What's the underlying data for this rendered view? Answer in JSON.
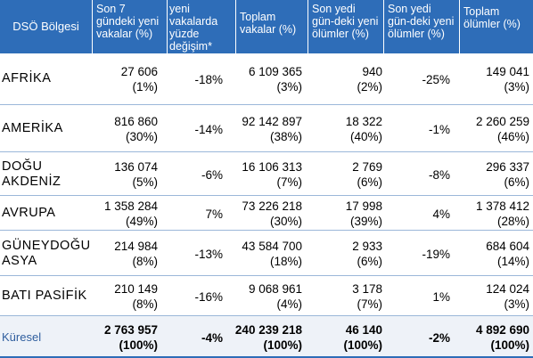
{
  "headers": [
    "DSÖ Bölgesi",
    "Son 7 gündeki yeni vakalar (%)",
    "yeni vakalarda yüzde değişim*",
    "Toplam vakalar (%)",
    "Son yedi gün-deki yeni ölümler (%)",
    "Son yedi gün-deki yeni ölümler (%)",
    "Toplam ölümler (%)"
  ],
  "rows": [
    {
      "region": [
        "AFRİKA"
      ],
      "new_cases": "27 606",
      "new_cases_pct": "(1%)",
      "case_change": "-18%",
      "total_cases": "6 109 365",
      "total_cases_pct": "(3%)",
      "new_deaths": "940",
      "new_deaths_pct": "(2%)",
      "death_change": "-25%",
      "total_deaths": "149 041",
      "total_deaths_pct": "(3%)"
    },
    {
      "region": [
        "AMERİKA"
      ],
      "new_cases": "816 860",
      "new_cases_pct": "(30%)",
      "case_change": "-14%",
      "total_cases": "92 142 897",
      "total_cases_pct": "(38%)",
      "new_deaths": "18 322",
      "new_deaths_pct": "(40%)",
      "death_change": "-1%",
      "total_deaths": "2 260 259",
      "total_deaths_pct": "(46%)"
    },
    {
      "region": [
        "DOĞU",
        "AKDENİZ"
      ],
      "new_cases": "136 074",
      "new_cases_pct": "(5%)",
      "case_change": "-6%",
      "total_cases": "16 106 313",
      "total_cases_pct": "(7%)",
      "new_deaths": "2 769",
      "new_deaths_pct": "(6%)",
      "death_change": "-8%",
      "total_deaths": "296 337",
      "total_deaths_pct": "(6%)"
    },
    {
      "region": [
        "AVRUPA"
      ],
      "new_cases": "1 358 284",
      "new_cases_pct": "(49%)",
      "case_change": "7%",
      "total_cases": "73 226 218",
      "total_cases_pct": "(30%)",
      "new_deaths": "17 998",
      "new_deaths_pct": "(39%)",
      "death_change": "4%",
      "total_deaths": "1 378 412",
      "total_deaths_pct": "(28%)"
    },
    {
      "region": [
        "GÜNEYDOĞU",
        "ASYA"
      ],
      "new_cases": "214 984",
      "new_cases_pct": "(8%)",
      "case_change": "-13%",
      "total_cases": "43 584 700",
      "total_cases_pct": "(18%)",
      "new_deaths": "2 933",
      "new_deaths_pct": "(6%)",
      "death_change": "-19%",
      "total_deaths": "684 604",
      "total_deaths_pct": "(14%)"
    },
    {
      "region": [
        "BATI PASİFİK"
      ],
      "new_cases": "210 149",
      "new_cases_pct": "(8%)",
      "case_change": "-16%",
      "total_cases": "9 068 961",
      "total_cases_pct": "(4%)",
      "new_deaths": "3 178",
      "new_deaths_pct": "(7%)",
      "death_change": "1%",
      "total_deaths": "124 024",
      "total_deaths_pct": "(3%)"
    }
  ],
  "total": {
    "region": [
      "Küresel"
    ],
    "new_cases": "2 763 957",
    "new_cases_pct": "(100%)",
    "case_change": "-4%",
    "total_cases": "240 239 218",
    "total_cases_pct": "(100%)",
    "new_deaths": "46 140",
    "new_deaths_pct": "(100%)",
    "death_change": "-2%",
    "total_deaths": "4 892 690",
    "total_deaths_pct": "(100%)"
  },
  "colors": {
    "header_bg": "#2e6db8",
    "header_text": "#ffffff",
    "row_rule": "#9bb7d9",
    "total_label": "#2f5e9e"
  }
}
